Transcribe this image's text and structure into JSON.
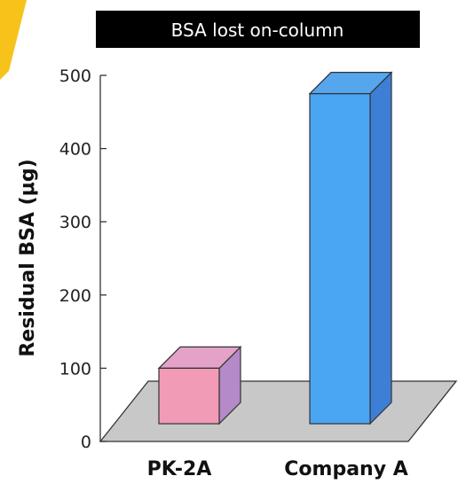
{
  "chart_data": {
    "type": "bar",
    "title": "BSA lost on-column",
    "ylabel": "Residual BSA (μg)",
    "xlabel": "",
    "categories": [
      "PK-2A",
      "Company A"
    ],
    "values": [
      100,
      475
    ],
    "ylim": [
      0,
      500
    ],
    "yticks": [
      "0",
      "100",
      "200",
      "300",
      "400",
      "500"
    ],
    "grid": false,
    "legend": "none",
    "style": "3d"
  },
  "colors": {
    "title_bg": "#000000",
    "title_fg": "#ffffff",
    "floor": "#c8c8c8",
    "corner_accent": "#f7c21a",
    "bars": [
      {
        "front": "#f19bb6",
        "top": "#e4a2c8",
        "side": "#b58ac8"
      },
      {
        "front": "#4aa5f2",
        "top": "#56a6ee",
        "side": "#3d7fd6"
      }
    ]
  }
}
